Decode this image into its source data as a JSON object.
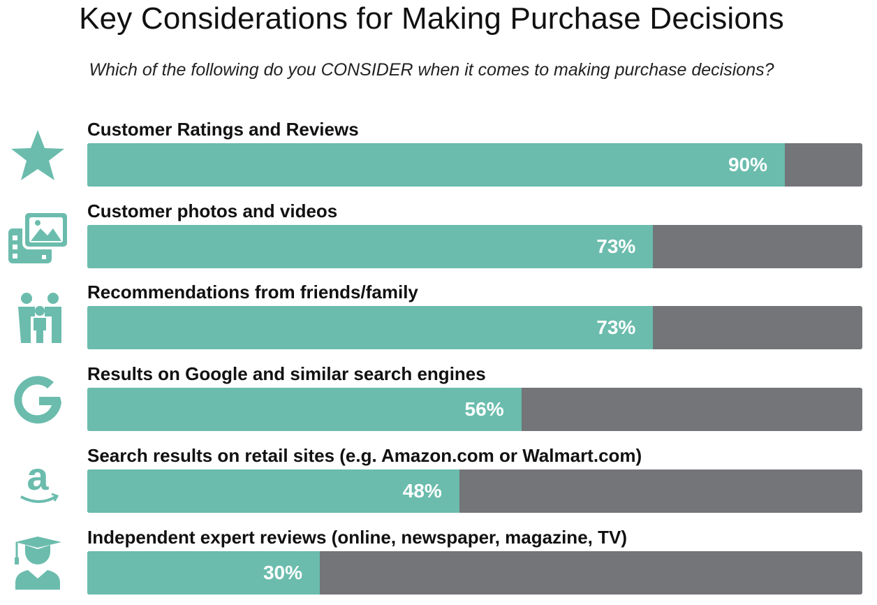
{
  "chart_data": {
    "type": "bar",
    "orientation": "horizontal",
    "title": "Key Considerations for Making Purchase Decisions",
    "subtitle": "Which of the following do you CONSIDER when it comes to making purchase decisions?",
    "categories": [
      "Customer Ratings and Reviews",
      "Customer photos and videos",
      "Recommendations from friends/family",
      "Results on Google and similar search engines",
      "Search results on retail sites (e.g. Amazon.com or Walmart.com)",
      "Independent expert reviews (online, newspaper, magazine, TV)"
    ],
    "values": [
      90,
      73,
      73,
      56,
      48,
      30
    ],
    "value_labels": [
      "90%",
      "73%",
      "73%",
      "56%",
      "48%",
      "30%"
    ],
    "icons": [
      "star-icon",
      "photos-videos-icon",
      "family-icon",
      "google-icon",
      "amazon-icon",
      "graduate-icon"
    ],
    "xlim": [
      0,
      100
    ],
    "colors": {
      "fill": "#6bbcad",
      "track": "#737578"
    }
  }
}
